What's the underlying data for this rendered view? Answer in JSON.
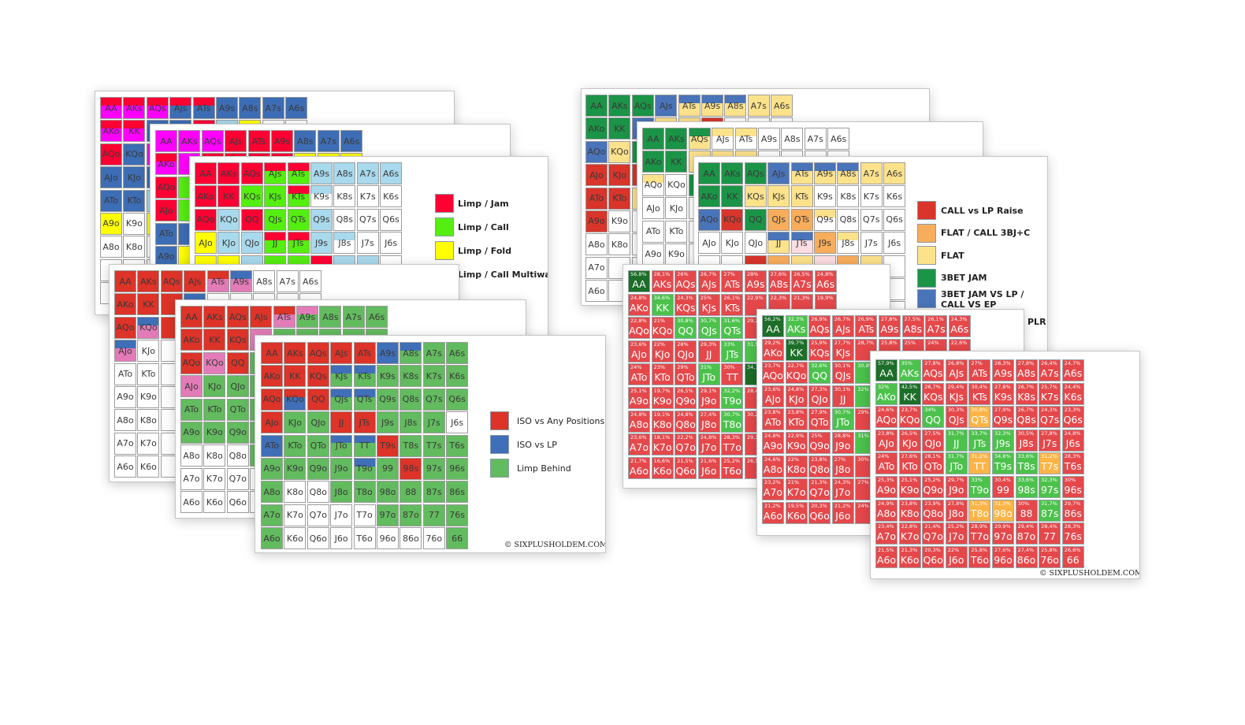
{
  "hands": [
    [
      "AA",
      "AKs",
      "AQs",
      "AJs",
      "ATs",
      "A9s",
      "A8s",
      "A7s",
      "A6s"
    ],
    [
      "AKo",
      "KK",
      "KQs",
      "KJs",
      "KTs",
      "K9s",
      "K8s",
      "K7s",
      "K6s"
    ],
    [
      "AQo",
      "KQo",
      "QQ",
      "QJs",
      "QTs",
      "Q9s",
      "Q8s",
      "Q7s",
      "Q6s"
    ],
    [
      "AJo",
      "KJo",
      "QJo",
      "JJ",
      "JTs",
      "J9s",
      "J8s",
      "J7s",
      "J6s"
    ],
    [
      "ATo",
      "KTo",
      "QTo",
      "JTo",
      "TT",
      "T9s",
      "T8s",
      "T7s",
      "T6s"
    ],
    [
      "A9o",
      "K9o",
      "Q9o",
      "J9o",
      "T9o",
      "99",
      "98s",
      "97s",
      "96s"
    ],
    [
      "A8o",
      "K8o",
      "Q8o",
      "J8o",
      "T8o",
      "98o",
      "88",
      "87s",
      "86s"
    ],
    [
      "A7o",
      "K7o",
      "Q7o",
      "J7o",
      "T7o",
      "97o",
      "87o",
      "77",
      "76s"
    ],
    [
      "A6o",
      "K6o",
      "Q6o",
      "J6o",
      "T6o",
      "96o",
      "86o",
      "76o",
      "66"
    ]
  ],
  "palettes": {
    "limp": {
      "R": "#ff0033",
      "M": "#ff00ff",
      "B": "#3d6db5",
      "Y": "#ffff00",
      "G": "#55ee11",
      "L": "#a9d9ec",
      "W": "#ffffff"
    },
    "iso": {
      "R": "#dd3328",
      "B": "#3f6fb8",
      "P": "#e37bb8",
      "G": "#62bb5e",
      "W": "#ffffff"
    },
    "call": {
      "R": "#d9352b",
      "O": "#f7ad5c",
      "Y": "#fde28c",
      "G": "#1b9447",
      "B": "#4a74b9",
      "P": "#fbdde2",
      "W": "#ffffff"
    },
    "equity": {
      "R": "#e5484b",
      "G": "#4cc24c",
      "D": "#1c6e28",
      "O": "#fdb446"
    }
  },
  "cards": [
    {
      "id": "c1",
      "palette": "limp",
      "rows": [
        "M/R M/R M/R B/R B/R B B B B",
        "M/R M/R B B R L Y W W",
        "R B M R R L Y W W",
        "B B B B G L Y W W",
        "B B L B G L Y W W",
        "Y W Y G G L W W W",
        "W W W W W W W W W",
        "W W W W W W W W W",
        "W W W W W W W W W"
      ]
    },
    {
      "id": "c2",
      "palette": "limp",
      "rows": [
        "M M M R R R B B B",
        "M/R M R R R R Y Y Y",
        "R G R R R R Y Y Y",
        "R G G G G L W W W",
        "B B L G G L W W W",
        "B Y Y Y Y R L L W",
        "W W W W W W W W W",
        "W W W W W W W W W",
        "W W W W W W W W W"
      ]
    },
    {
      "id": "c3",
      "palette": "limp",
      "rows": [
        "R R R G/R G/R L L L L",
        "R R G G G/R W/L W W W",
        "R L R G G L W W W",
        "Y L L G/R G/R L W/L W W",
        "Y Y L G G R L L W",
        "Y W L G G L W W W",
        "W W L G W W W W W",
        "W W W W W W W W W",
        "W W W W W W W W W"
      ]
    },
    {
      "id": "c4",
      "palette": "iso",
      "rows": [
        "R R R R P/R P/B W W W",
        "R R R B W W W W W",
        "R P/B R W W W W W W",
        "P/B W W W W W W W W",
        "W W W W W W W W W",
        "W W W W W W W W W",
        "W W W W W W W W W",
        "W W W W W W W W W",
        "W W W W W W W W W"
      ]
    },
    {
      "id": "c5",
      "palette": "iso",
      "rows": [
        "R R R R P/R G/P G G G",
        "R R R P G G G G G",
        "R P R G G G G G G",
        "P G G G G G G G G",
        "G G G G G G G G G",
        "G G G G G G G G G",
        "W W W G G G G G G",
        "W W W W G G G G G",
        "W W W W W W G G G"
      ]
    },
    {
      "id": "c6",
      "palette": "iso",
      "rows": [
        "R R R R R B G/B G G",
        "R R R G/B G/B G G G G",
        "R B/R R G/B G/B G G G G",
        "R G G R R G G G W",
        "B G G G/B G/B R G G G",
        "G G G G G/B G R G G",
        "G W W G G G G G G",
        "G W W W W G G G G",
        "G W W W W W W W G"
      ]
    },
    {
      "id": "cA",
      "palette": "call",
      "rows": [
        "G G G B Y/B Y/B Y/B Y Y",
        "G G B Y Y R W W W",
        "B Y G Y Y W W W W",
        "R R R W W W W W W",
        "R R Y W W W W W W",
        "R W W W W W W W W",
        "W W W W W W W W W",
        "W W W W W W W W W",
        "W W W W W W W W W"
      ]
    },
    {
      "id": "cB",
      "palette": "call",
      "rows": [
        "G G Y/G W/Y W/Y W W W W",
        "G G Y Y Y W W W W",
        "W/Y W G W W W W W W",
        "W W W W W W W W W",
        "W W W W W W W W W",
        "W W W W W W W W W",
        "W W W W W W W W W",
        "W W W W W W W W W",
        "W W W W W W W W W"
      ]
    },
    {
      "id": "cC",
      "palette": "call",
      "rows": [
        "G G G B Y/B Y/B Y/B Y Y",
        "G G Y Y Y W W W W",
        "B R G O O W/Y W W W",
        "W W W Y/B P/B O W/Y W W",
        "W W R O Y P O Y W",
        "W W W W W W W W W",
        "W W W W W W W W W",
        "W W W W W W W W W",
        "W W W W W W W W W"
      ]
    }
  ],
  "equity_cards": [
    {
      "id": "cD",
      "rows": [
        "D R R R R R R R R",
        "R G R R R R R R R",
        "R R G G G R R R R",
        "R R R R G G R R R",
        "R R R G R D R R R",
        "R R R R G R R R R",
        "R R R R G R R R R",
        "R R R R R R R R R",
        "R R R R R R R R R"
      ],
      "pct": [
        [
          "56,8%",
          "28,1%",
          "26%",
          "26,7%",
          "27%",
          "28%",
          "27,6%",
          "26,5%",
          "24,8%"
        ],
        [
          "24,8%",
          "34,6%",
          "24,3%",
          "25%",
          "26,1%",
          "22,9%",
          "22,3%",
          "21,3%",
          "19,9%"
        ],
        [
          "22,8%",
          "21%",
          "30,8%",
          "30,7%",
          "31,6%",
          "29,2%",
          null,
          null,
          null
        ],
        [
          "23,6%",
          "22%",
          "28%",
          "29,3%",
          "33%",
          "31,5%",
          null,
          null,
          null
        ],
        [
          "24%",
          "23%",
          "29%",
          "31%",
          "30%",
          "34,1%",
          null,
          null,
          null
        ],
        [
          "25,1%",
          "19,7%",
          "26,5%",
          "29,1%",
          "32,2%",
          "28,4%",
          null,
          null,
          null
        ],
        [
          "24,8%",
          "19,1%",
          "24,8%",
          "27,4%",
          "30,7%",
          "30,2%",
          null,
          null,
          null
        ],
        [
          "23,6%",
          "18,1%",
          "22,2%",
          "24,8%",
          "28,3%",
          "29,3%",
          null,
          null,
          null
        ],
        [
          "21,7%",
          "16,6%",
          "21,5%",
          "21,6%",
          "25,2%",
          "26,5%",
          null,
          null,
          null
        ]
      ]
    },
    {
      "id": "cE",
      "rows": [
        "D G R R R R R R R",
        "R D R R R R R R R",
        "R R G R G R R R R",
        "R R R R G R R R R",
        "R R R G R R R R R",
        "R R R R G R R R R",
        "R R R R R R R R R",
        "R R R R R R R R R",
        "R R R R R R R R R"
      ],
      "pct": [
        [
          "56,2%",
          "32,3%",
          "26,9%",
          "26,7%",
          "26,9%",
          "27,8%",
          "27,5%",
          "26,1%",
          "24,3%"
        ],
        [
          "29,2%",
          "39,7%",
          "25,9%",
          "27,7%",
          "28,7%",
          "25,8%",
          "25%",
          "24%",
          "22,6%"
        ],
        [
          "23,7%",
          "22,7%",
          "32,6%",
          "30,1%",
          "30,8%",
          null,
          null,
          null,
          null
        ],
        [
          "23,6%",
          "24,8%",
          "27,3%",
          "30,1%",
          "32%",
          null,
          null,
          null,
          null
        ],
        [
          "23,8%",
          "23,8%",
          "27,9%",
          "30,7%",
          "29%",
          null,
          null,
          null,
          null
        ],
        [
          "24,8%",
          "22,9%",
          "25%",
          "28,8%",
          "31%",
          null,
          null,
          null,
          null
        ],
        [
          "24,6%",
          "22%",
          "23,8%",
          "27%",
          "30%",
          null,
          null,
          null,
          null
        ],
        [
          "23,2%",
          "21%",
          "21,3%",
          "24,3%",
          "27%",
          null,
          null,
          null,
          null
        ],
        [
          "21,2%",
          "19,5%",
          "20,3%",
          "21,2%",
          "24%",
          null,
          null,
          null,
          null
        ]
      ]
    },
    {
      "id": "cF",
      "rows": [
        "D G R R R R R R R",
        "G D R R R R R R R",
        "R R G R O R R R R",
        "R R R G G G R R R",
        "R R R G O G G O R",
        "R R R R G R G G R",
        "R R R R O O R G R",
        "R R R R R R R R R",
        "R R R R R R R R R"
      ],
      "pct": [
        [
          "57,9%",
          "35%",
          "27,8%",
          "26,8%",
          "27%",
          "28,3%",
          "27,8%",
          "26,4%",
          "24,7%"
        ],
        [
          "32%",
          "42,5%",
          "26,7%",
          "29,4%",
          "30,4%",
          "27,8%",
          "26,7%",
          "25,7%",
          "24,4%"
        ],
        [
          "24,6%",
          "23,7%",
          "34%",
          "30,3%",
          "30,8%",
          "27,9%",
          "26,7%",
          "24,3%",
          "23,3%"
        ],
        [
          "23,8%",
          "26,5%",
          "27,5%",
          "31,7%",
          "33,7%",
          "32,3%",
          "30,5%",
          "27,8%",
          "24,8%"
        ],
        [
          "24%",
          "27,6%",
          "28,1%",
          "31,7%",
          "31,2%",
          "34,8%",
          "33,6%",
          "31,2%",
          "28,3%"
        ],
        [
          "25,3%",
          "25,1%",
          "25,2%",
          "29,7%",
          "33%",
          "30,4%",
          "33,6%",
          "32,3%",
          "30%"
        ],
        [
          "24,9%",
          "23,8%",
          "23,9%",
          "27,8%",
          "31,3%",
          "31,3%",
          "30%",
          "31,7%",
          "29,7%"
        ],
        [
          "23,4%",
          "22,8%",
          "21,4%",
          "25,2%",
          "28,9%",
          "29,9%",
          "29,4%",
          "28,4%",
          "28,3%"
        ],
        [
          "21,5%",
          "21,3%",
          "20,3%",
          "22%",
          "25,8%",
          "27,6%",
          "27,4%",
          "25,8%",
          "26,6%"
        ]
      ]
    }
  ],
  "legends": {
    "limp": [
      {
        "label": "Limp / Jam",
        "color": "#ff0033"
      },
      {
        "label": "Limp / Call",
        "color": "#55ee11"
      },
      {
        "label": "Limp / Fold",
        "color": "#ffff00"
      },
      {
        "label": "Limp / Call Multiway",
        "color": "#a9d9ec"
      }
    ],
    "iso": [
      {
        "label": "ISO vs Any Positions",
        "color": "#dd3328"
      },
      {
        "label": "ISO vs LP",
        "color": "#3f6fb8"
      },
      {
        "label": "Limp Behind",
        "color": "#62bb5e"
      }
    ],
    "call": [
      {
        "label": "CALL vs LP Raise",
        "color": "#d9352b"
      },
      {
        "label": "FLAT / CALL 3BJ+C",
        "color": "#f7ad5c"
      },
      {
        "label": "FLAT",
        "color": "#fde28c"
      },
      {
        "label": "3BET JAM",
        "color": "#1b9447"
      },
      {
        "label": "3BET JAM VS LP / CALL VS EP",
        "color": "#4a74b9"
      },
      {
        "label": "PLR",
        "color": "#fbdde2"
      }
    ]
  },
  "copyright": "© SIXPLUSHOLDEM.COM"
}
